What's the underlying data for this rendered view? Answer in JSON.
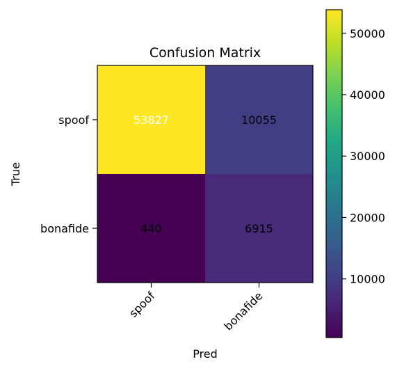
{
  "chart_data": {
    "type": "heatmap",
    "title": "Confusion Matrix",
    "xlabel": "Pred",
    "ylabel": "True",
    "x_categories": [
      "spoof",
      "bonafide"
    ],
    "y_categories": [
      "spoof",
      "bonafide"
    ],
    "values": [
      [
        53827,
        10055
      ],
      [
        440,
        6915
      ]
    ],
    "colormap": "viridis",
    "colorbar": {
      "range": [
        440,
        53827
      ],
      "ticks": [
        10000,
        20000,
        30000,
        40000,
        50000
      ],
      "tick_labels": [
        "10000",
        "20000",
        "30000",
        "40000",
        "50000"
      ]
    },
    "x_tick_rotation_deg": 45,
    "annotation_colors": {
      "light": "#ffffff",
      "dark": "#000000"
    }
  }
}
